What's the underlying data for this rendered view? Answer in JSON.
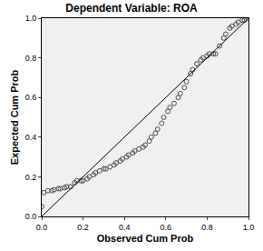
{
  "chart_data": {
    "type": "scatter",
    "title": "Dependent Variable: ROA",
    "x_label": "Observed Cum Prob",
    "y_label": "Expected Cum Prob",
    "xlim": [
      0,
      1
    ],
    "ylim": [
      0,
      1
    ],
    "xticks": [
      {
        "value": 0,
        "label": "0.0"
      },
      0.2,
      0.4,
      0.6,
      0.8,
      {
        "value": 1,
        "label": "1.0"
      }
    ],
    "yticks": [
      {
        "value": 0,
        "label": "0.0"
      },
      0.2,
      0.4,
      0.6,
      0.8,
      {
        "value": 1,
        "label": "1.0"
      }
    ],
    "grid": false,
    "series": [
      {
        "type": "scatter",
        "marker": "circle-open",
        "color": "#4d4d4d",
        "x": [
          0.0,
          0.01,
          0.03,
          0.05,
          0.06,
          0.08,
          0.09,
          0.11,
          0.12,
          0.14,
          0.16,
          0.17,
          0.19,
          0.2,
          0.22,
          0.23,
          0.25,
          0.26,
          0.28,
          0.3,
          0.31,
          0.33,
          0.35,
          0.36,
          0.38,
          0.39,
          0.41,
          0.42,
          0.44,
          0.45,
          0.47,
          0.49,
          0.5,
          0.52,
          0.53,
          0.55,
          0.56,
          0.58,
          0.59,
          0.61,
          0.62,
          0.64,
          0.66,
          0.67,
          0.69,
          0.7,
          0.72,
          0.73,
          0.75,
          0.77,
          0.78,
          0.8,
          0.81,
          0.83,
          0.84,
          0.86,
          0.88,
          0.89,
          0.91,
          0.92,
          0.94,
          0.95,
          0.97,
          0.98,
          1.0
        ],
        "values": [
          0.05,
          0.12,
          0.13,
          0.13,
          0.135,
          0.14,
          0.14,
          0.145,
          0.15,
          0.15,
          0.17,
          0.18,
          0.18,
          0.18,
          0.19,
          0.2,
          0.21,
          0.22,
          0.23,
          0.24,
          0.24,
          0.25,
          0.26,
          0.27,
          0.28,
          0.29,
          0.3,
          0.31,
          0.32,
          0.33,
          0.34,
          0.35,
          0.36,
          0.38,
          0.4,
          0.42,
          0.44,
          0.47,
          0.5,
          0.53,
          0.55,
          0.57,
          0.6,
          0.62,
          0.65,
          0.68,
          0.72,
          0.74,
          0.77,
          0.79,
          0.8,
          0.81,
          0.82,
          0.82,
          0.82,
          0.86,
          0.9,
          0.92,
          0.95,
          0.96,
          0.97,
          0.98,
          0.99,
          0.99,
          1.0
        ]
      },
      {
        "type": "line",
        "line_style": "solid",
        "color": "#000000",
        "x": [
          0,
          1
        ],
        "values": [
          0,
          1
        ]
      }
    ]
  }
}
